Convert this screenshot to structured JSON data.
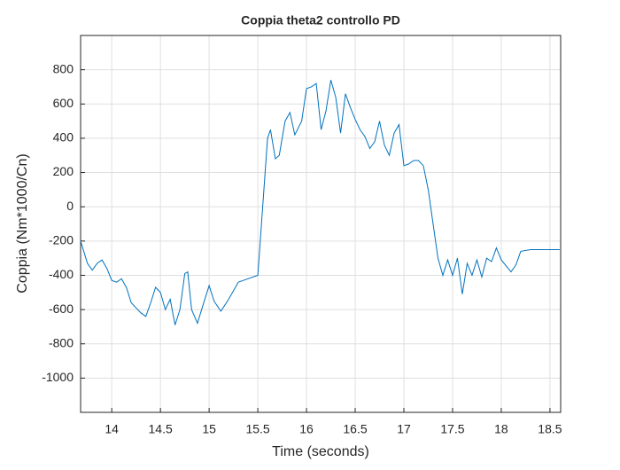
{
  "chart_data": {
    "type": "line",
    "title": "Coppia theta2 controllo PD",
    "x_label": "Time (seconds)",
    "y_label": "Coppia (Nm*1000/Cn)",
    "xlim": [
      13.68,
      18.61
    ],
    "ylim": [
      -1200,
      1000
    ],
    "xticks": [
      14,
      14.5,
      15,
      15.5,
      16,
      16.5,
      17,
      17.5,
      18,
      18.5
    ],
    "yticks": [
      -1000,
      -800,
      -600,
      -400,
      -200,
      0,
      200,
      400,
      600,
      800
    ],
    "grid": true,
    "x": [
      13.68,
      13.75,
      13.8,
      13.85,
      13.9,
      13.95,
      14.0,
      14.05,
      14.1,
      14.15,
      14.2,
      14.25,
      14.3,
      14.35,
      14.4,
      14.45,
      14.5,
      14.55,
      14.6,
      14.65,
      14.7,
      14.75,
      14.78,
      14.82,
      14.88,
      14.95,
      15.0,
      15.05,
      15.12,
      15.2,
      15.3,
      15.4,
      15.5,
      15.55,
      15.6,
      15.63,
      15.68,
      15.72,
      15.78,
      15.83,
      15.88,
      15.95,
      16.0,
      16.05,
      16.1,
      16.15,
      16.2,
      16.25,
      16.3,
      16.35,
      16.4,
      16.45,
      16.5,
      16.55,
      16.6,
      16.65,
      16.7,
      16.75,
      16.8,
      16.85,
      16.9,
      16.95,
      17.0,
      17.05,
      17.1,
      17.15,
      17.2,
      17.25,
      17.3,
      17.35,
      17.4,
      17.45,
      17.5,
      17.55,
      17.6,
      17.65,
      17.7,
      17.75,
      17.8,
      17.85,
      17.9,
      17.95,
      18.0,
      18.1,
      18.15,
      18.2,
      18.3,
      18.6
    ],
    "series": [
      {
        "color": "#0072bd",
        "values": [
          -200,
          -330,
          -370,
          -330,
          -310,
          -360,
          -430,
          -440,
          -420,
          -470,
          -560,
          -590,
          -620,
          -640,
          -560,
          -470,
          -500,
          -600,
          -540,
          -690,
          -600,
          -390,
          -380,
          -600,
          -680,
          -550,
          -460,
          -550,
          -610,
          -540,
          -440,
          -420,
          -400,
          0,
          400,
          450,
          280,
          300,
          500,
          550,
          420,
          500,
          690,
          700,
          720,
          450,
          560,
          740,
          640,
          430,
          660,
          580,
          510,
          450,
          410,
          340,
          380,
          500,
          360,
          300,
          430,
          480,
          240,
          250,
          270,
          270,
          240,
          100,
          -100,
          -300,
          -400,
          -310,
          -400,
          -300,
          -510,
          -330,
          -400,
          -310,
          -410,
          -300,
          -320,
          -240,
          -310,
          -380,
          -340,
          -260,
          -250,
          -250
        ]
      }
    ]
  }
}
